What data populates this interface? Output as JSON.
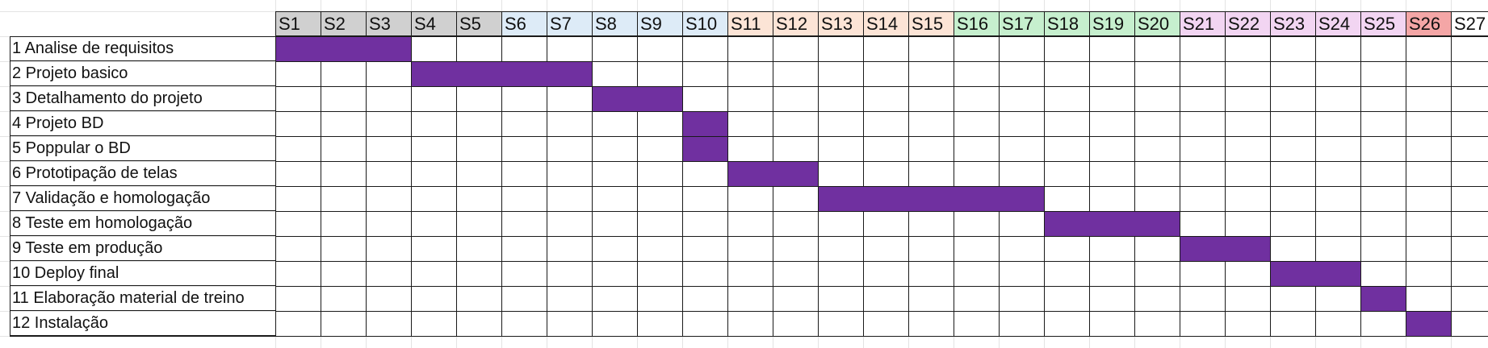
{
  "sheet": {
    "weeks": [
      {
        "label": "S1",
        "color": "#d0d0d0"
      },
      {
        "label": "S2",
        "color": "#d0d0d0"
      },
      {
        "label": "S3",
        "color": "#d0d0d0"
      },
      {
        "label": "S4",
        "color": "#d0d0d0"
      },
      {
        "label": "S5",
        "color": "#d0d0d0"
      },
      {
        "label": "S6",
        "color": "#ddebf7"
      },
      {
        "label": "S7",
        "color": "#ddebf7"
      },
      {
        "label": "S8",
        "color": "#ddebf7"
      },
      {
        "label": "S9",
        "color": "#ddebf7"
      },
      {
        "label": "S10",
        "color": "#ddebf7"
      },
      {
        "label": "S11",
        "color": "#fce4d6"
      },
      {
        "label": "S12",
        "color": "#fce4d6"
      },
      {
        "label": "S13",
        "color": "#fce4d6"
      },
      {
        "label": "S14",
        "color": "#fce4d6"
      },
      {
        "label": "S15",
        "color": "#fce4d6"
      },
      {
        "label": "S16",
        "color": "#c6efce"
      },
      {
        "label": "S17",
        "color": "#c6efce"
      },
      {
        "label": "S18",
        "color": "#c6efce"
      },
      {
        "label": "S19",
        "color": "#c6efce"
      },
      {
        "label": "S20",
        "color": "#c6efce"
      },
      {
        "label": "S21",
        "color": "#f2d5f2"
      },
      {
        "label": "S22",
        "color": "#f2d5f2"
      },
      {
        "label": "S23",
        "color": "#f2d5f2"
      },
      {
        "label": "S24",
        "color": "#f2d5f2"
      },
      {
        "label": "S25",
        "color": "#f2d5f2"
      },
      {
        "label": "S26",
        "color": "#f4a6a6"
      },
      {
        "label": "S27",
        "color": "#ffffff"
      }
    ],
    "tasks": [
      {
        "label": "1 Analise de requisitos",
        "start_week": 1,
        "end_week": 3
      },
      {
        "label": "2 Projeto basico",
        "start_week": 4,
        "end_week": 7
      },
      {
        "label": "3 Detalhamento do projeto",
        "start_week": 8,
        "end_week": 9
      },
      {
        "label": "4 Projeto BD",
        "start_week": 10,
        "end_week": 10
      },
      {
        "label": "5 Poppular o BD",
        "start_week": 10,
        "end_week": 10
      },
      {
        "label": "6 Prototipação de telas",
        "start_week": 11,
        "end_week": 12
      },
      {
        "label": "7 Validação e homologação",
        "start_week": 13,
        "end_week": 17
      },
      {
        "label": "8 Teste em homologação",
        "start_week": 18,
        "end_week": 20
      },
      {
        "label": "9 Teste em produção",
        "start_week": 21,
        "end_week": 22
      },
      {
        "label": "10 Deploy final",
        "start_week": 23,
        "end_week": 24
      },
      {
        "label": "11 Elaboração material de treino",
        "start_week": 25,
        "end_week": 25
      },
      {
        "label": "12 Instalação",
        "start_week": 26,
        "end_week": 26
      }
    ],
    "bar_color": "#7030a0"
  }
}
